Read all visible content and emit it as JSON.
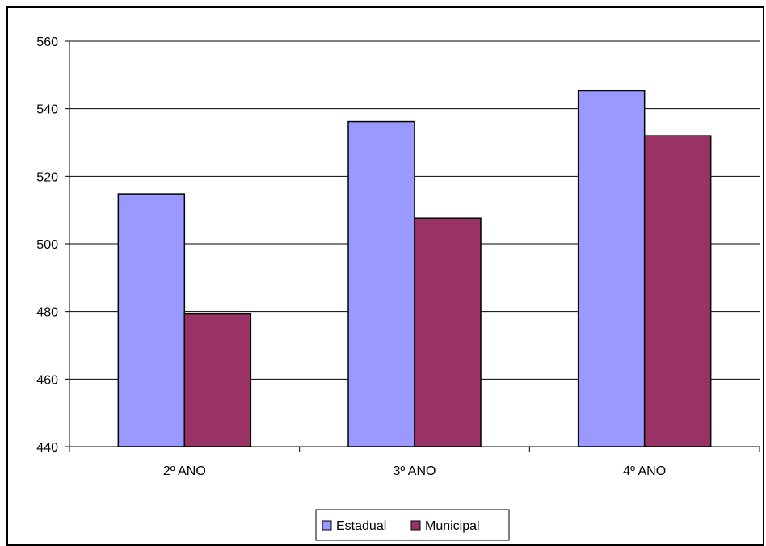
{
  "chart_data": {
    "type": "bar",
    "categories": [
      "2º ANO",
      "3º ANO",
      "4º ANO"
    ],
    "series": [
      {
        "name": "Estadual",
        "values": [
          514.8,
          536.2,
          545.3
        ],
        "color": "#9999FF"
      },
      {
        "name": "Municipal",
        "values": [
          479.3,
          507.6,
          532.0
        ],
        "color": "#993366"
      }
    ],
    "ylim": [
      440,
      560
    ],
    "yticks": [
      440,
      460,
      480,
      500,
      520,
      540,
      560
    ],
    "grid": true,
    "legend_position": "bottom"
  }
}
